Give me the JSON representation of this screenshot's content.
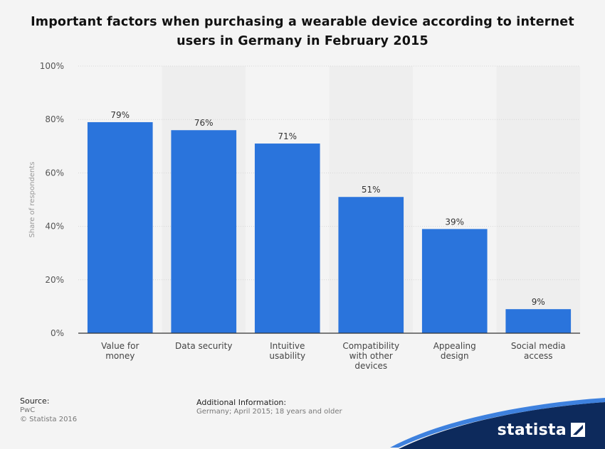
{
  "title_line1": "Important factors when purchasing a wearable device according to internet",
  "title_line2": "users in Germany in February 2015",
  "source": {
    "heading": "Source:",
    "lines": [
      "PwC",
      "© Statista 2016"
    ]
  },
  "additional_info": {
    "heading": "Additional Information:",
    "text": "Germany; April 2015; 18 years and older"
  },
  "brand": "statista",
  "colors": {
    "bar": "#2a74dc",
    "band": "#eeeeee",
    "brand_blue": "#0d2a5c"
  },
  "chart_data": {
    "type": "bar",
    "categories": [
      [
        "Value for",
        "money"
      ],
      [
        "Data security"
      ],
      [
        "Intuitive",
        "usability"
      ],
      [
        "Compatibility",
        "with other",
        "devices"
      ],
      [
        "Appealing",
        "design"
      ],
      [
        "Social media",
        "access"
      ]
    ],
    "values": [
      79,
      76,
      71,
      51,
      39,
      9
    ],
    "value_labels": [
      "79%",
      "76%",
      "71%",
      "51%",
      "39%",
      "9%"
    ],
    "ylabel": "Share of respondents",
    "ylim": [
      0,
      100
    ],
    "yticks": [
      "0%",
      "20%",
      "40%",
      "60%",
      "80%",
      "100%"
    ],
    "grid": true
  }
}
